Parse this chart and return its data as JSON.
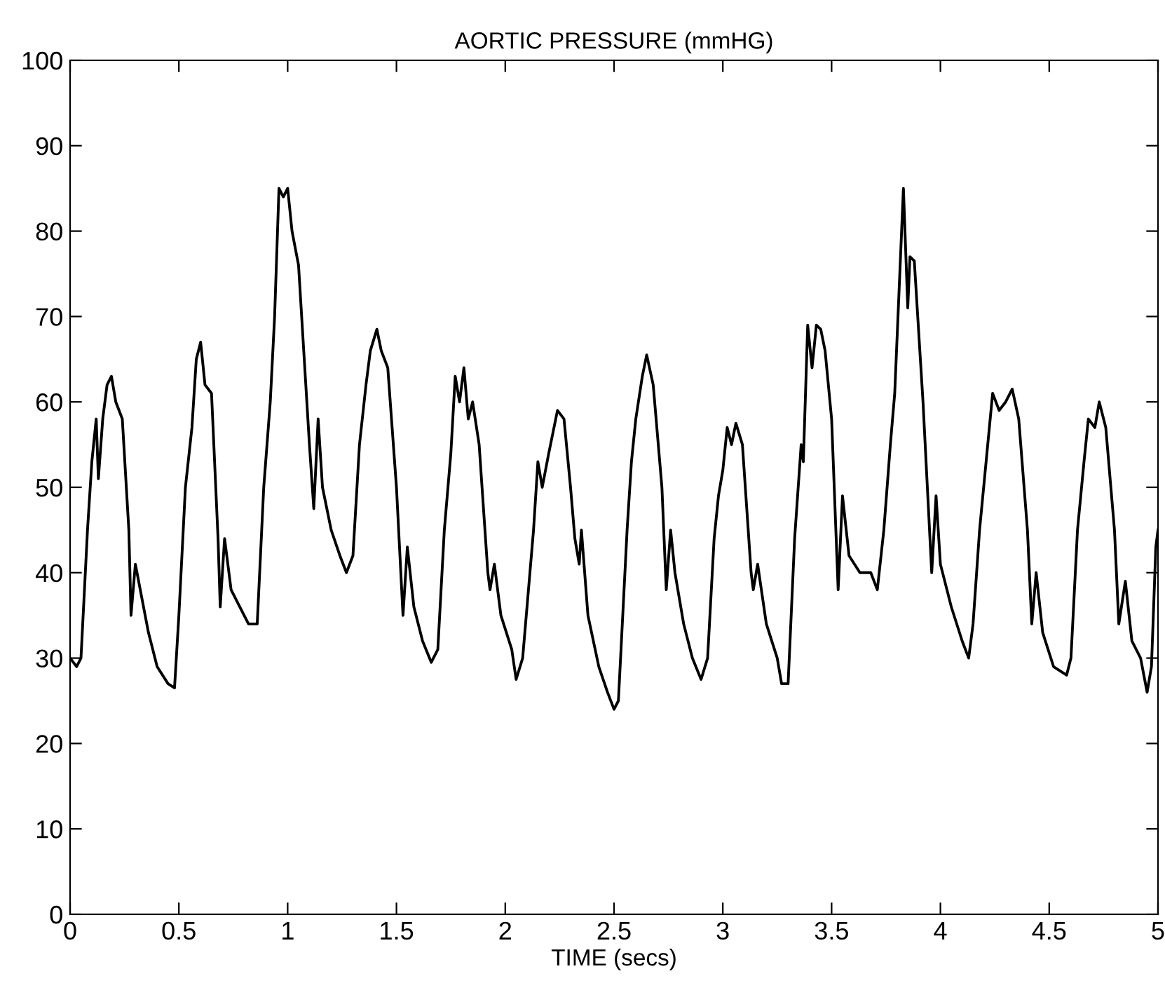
{
  "chart_data": {
    "type": "line",
    "title": "AORTIC PRESSURE (mmHG)",
    "xlabel": "TIME (secs)",
    "x": [
      0,
      0.03,
      0.05,
      0.08,
      0.1,
      0.12,
      0.13,
      0.15,
      0.17,
      0.19,
      0.21,
      0.24,
      0.27,
      0.28,
      0.3,
      0.33,
      0.36,
      0.4,
      0.45,
      0.48,
      0.5,
      0.53,
      0.56,
      0.58,
      0.6,
      0.62,
      0.65,
      0.68,
      0.69,
      0.71,
      0.74,
      0.78,
      0.82,
      0.86,
      0.89,
      0.92,
      0.94,
      0.96,
      0.98,
      1.0,
      1.02,
      1.05,
      1.1,
      1.12,
      1.14,
      1.16,
      1.2,
      1.24,
      1.27,
      1.3,
      1.33,
      1.36,
      1.38,
      1.41,
      1.43,
      1.46,
      1.5,
      1.53,
      1.55,
      1.58,
      1.62,
      1.66,
      1.69,
      1.72,
      1.75,
      1.77,
      1.79,
      1.81,
      1.83,
      1.85,
      1.88,
      1.92,
      1.93,
      1.95,
      1.98,
      2.03,
      2.05,
      2.08,
      2.13,
      2.15,
      2.17,
      2.2,
      2.24,
      2.27,
      2.3,
      2.32,
      2.34,
      2.35,
      2.38,
      2.43,
      2.47,
      2.5,
      2.52,
      2.56,
      2.58,
      2.6,
      2.63,
      2.65,
      2.68,
      2.72,
      2.74,
      2.76,
      2.78,
      2.82,
      2.86,
      2.9,
      2.93,
      2.96,
      2.98,
      3.0,
      3.02,
      3.04,
      3.06,
      3.09,
      3.13,
      3.14,
      3.16,
      3.2,
      3.25,
      3.27,
      3.3,
      3.33,
      3.36,
      3.37,
      3.39,
      3.41,
      3.43,
      3.45,
      3.47,
      3.5,
      3.53,
      3.55,
      3.58,
      3.63,
      3.68,
      3.71,
      3.74,
      3.77,
      3.79,
      3.81,
      3.83,
      3.85,
      3.86,
      3.88,
      3.92,
      3.96,
      3.98,
      4.0,
      4.05,
      4.1,
      4.13,
      4.15,
      4.18,
      4.21,
      4.24,
      4.27,
      4.3,
      4.33,
      4.36,
      4.4,
      4.42,
      4.44,
      4.47,
      4.52,
      4.58,
      4.6,
      4.63,
      4.66,
      4.68,
      4.71,
      4.73,
      4.76,
      4.8,
      4.82,
      4.85,
      4.88,
      4.92,
      4.95,
      4.97,
      4.99,
      5.0
    ],
    "series": [
      {
        "color": "#000000",
        "values": [
          30,
          29,
          30,
          45,
          53,
          58,
          51,
          58,
          62,
          63,
          60,
          58,
          45,
          35,
          41,
          37,
          33,
          29,
          27,
          26.5,
          35,
          50,
          57,
          65,
          67,
          62,
          61,
          44,
          36,
          44,
          38,
          36,
          34,
          34,
          50,
          60,
          70,
          85,
          84,
          85,
          80,
          76,
          55,
          47.5,
          58,
          50,
          45,
          42,
          40,
          42,
          55,
          62,
          66,
          68.5,
          66,
          64,
          50,
          35,
          43,
          36,
          32,
          29.5,
          31,
          45,
          54,
          63,
          60,
          64,
          58,
          60,
          55,
          40,
          38,
          41,
          35,
          31,
          27.5,
          30,
          45,
          53,
          50,
          54,
          59,
          58,
          50,
          44,
          41,
          45,
          35,
          29,
          26,
          24,
          25,
          45,
          53,
          58,
          63,
          65.5,
          62,
          50,
          38,
          45,
          40,
          34,
          30,
          27.5,
          30,
          44,
          49,
          52,
          57,
          55,
          57.5,
          55,
          40,
          38,
          41,
          34,
          30,
          27,
          27,
          44,
          55,
          53,
          69,
          64,
          69,
          68.5,
          66,
          58,
          38,
          49,
          42,
          40,
          40,
          38,
          45,
          55,
          61,
          73,
          85,
          71,
          77,
          76.5,
          60,
          40,
          49,
          41,
          36,
          32,
          30,
          34,
          45,
          53,
          61,
          59,
          60,
          61.5,
          58,
          45,
          34,
          40,
          33,
          29,
          28,
          30,
          45,
          53,
          58,
          57,
          60,
          57,
          45,
          34,
          39,
          32,
          30,
          26,
          29,
          43,
          45
        ]
      }
    ],
    "xlim": [
      0,
      5
    ],
    "ylim": [
      0,
      100
    ],
    "xticks": [
      0,
      0.5,
      1,
      1.5,
      2,
      2.5,
      3,
      3.5,
      4,
      4.5,
      5
    ],
    "yticks": [
      0,
      10,
      20,
      30,
      40,
      50,
      60,
      70,
      80,
      90,
      100
    ],
    "grid": false,
    "legend": false,
    "marker": "none",
    "line_style": "solid"
  }
}
